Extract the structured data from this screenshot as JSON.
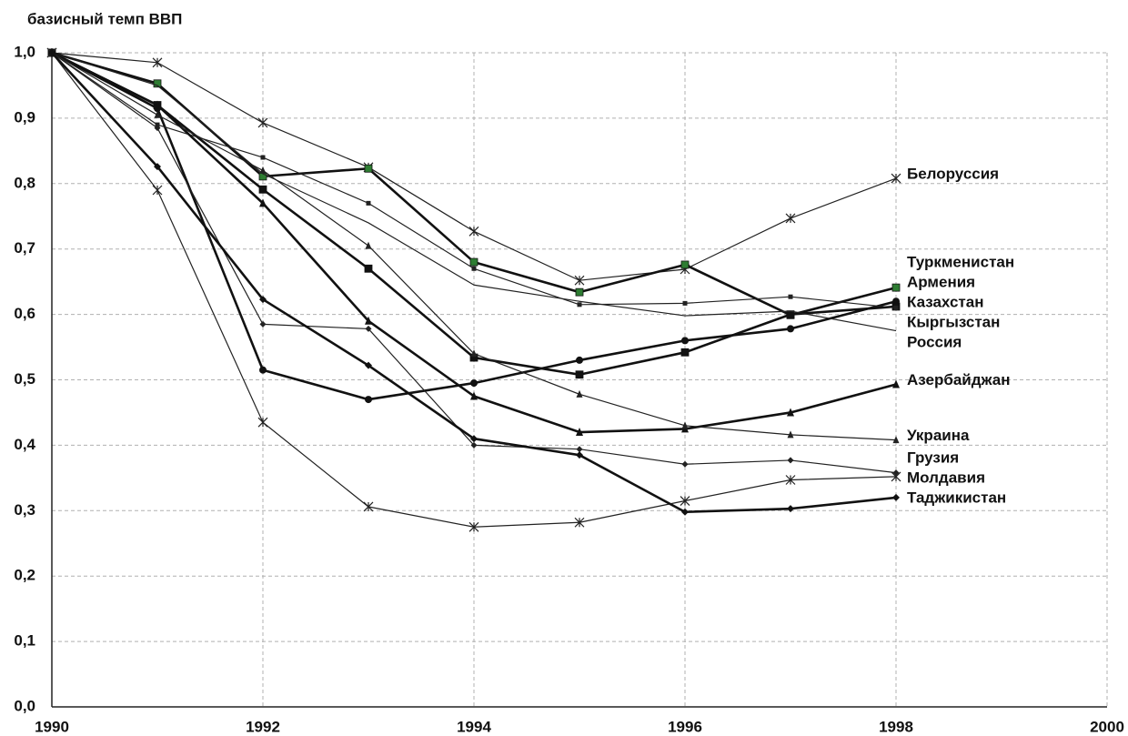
{
  "chart_data": {
    "type": "line",
    "title": "базисный темп ВВП",
    "x": [
      1990,
      1991,
      1992,
      1993,
      1994,
      1995,
      1996,
      1997,
      1998
    ],
    "xlim": [
      1990,
      2000
    ],
    "xticks": [
      1990,
      1992,
      1994,
      1996,
      1998,
      2000
    ],
    "ylim": [
      0,
      1
    ],
    "yticks": [
      {
        "value": 0,
        "label": "0,0"
      },
      {
        "value": 0.1,
        "label": "0,1"
      },
      {
        "value": 0.2,
        "label": "0,2"
      },
      {
        "value": 0.3,
        "label": "0,3"
      },
      {
        "value": 0.4,
        "label": "0,4"
      },
      {
        "value": 0.5,
        "label": "0,5"
      },
      {
        "value": 0.6,
        "label": "0,6"
      },
      {
        "value": 0.7,
        "label": "0,7"
      },
      {
        "value": 0.8,
        "label": "0,8"
      },
      {
        "value": 0.9,
        "label": "0,9"
      },
      {
        "value": 1,
        "label": "1,0"
      }
    ],
    "grid": true,
    "series": [
      {
        "name": "Белоруссия",
        "color": "#222222",
        "marker": "star",
        "thick": false,
        "values": [
          1.0,
          0.985,
          0.893,
          0.825,
          0.727,
          0.652,
          0.669,
          0.747,
          0.808
        ]
      },
      {
        "name": "Туркменистан",
        "color": "#111111",
        "marker_color": "#2e7d32",
        "marker": "square",
        "thick": true,
        "values": [
          1.0,
          0.953,
          0.811,
          0.823,
          0.68,
          0.634,
          0.676,
          0.599,
          0.641
        ]
      },
      {
        "name": "Армения",
        "color": "#111111",
        "marker": "circle",
        "thick": true,
        "values": [
          1.0,
          0.915,
          0.515,
          0.47,
          0.495,
          0.53,
          0.56,
          0.578,
          0.62
        ]
      },
      {
        "name": "Казахстан",
        "color": "#111111",
        "marker": "square",
        "thick": true,
        "values": [
          1.0,
          0.92,
          0.791,
          0.67,
          0.534,
          0.508,
          0.542,
          0.6,
          0.612
        ]
      },
      {
        "name": "Кыргызстан",
        "color": "#222222",
        "marker": "dash",
        "thick": false,
        "values": [
          1.0,
          0.89,
          0.84,
          0.77,
          0.67,
          0.615,
          0.617,
          0.627,
          0.61
        ]
      },
      {
        "name": "Россия",
        "color": "#222222",
        "marker": "none",
        "thick": false,
        "values": [
          1.0,
          0.95,
          0.815,
          0.74,
          0.645,
          0.62,
          0.598,
          0.605,
          0.575
        ]
      },
      {
        "name": "Азербайджан",
        "color": "#111111",
        "marker": "triangle",
        "thick": true,
        "values": [
          1.0,
          0.92,
          0.77,
          0.59,
          0.475,
          0.42,
          0.425,
          0.45,
          0.493
        ]
      },
      {
        "name": "Украина",
        "color": "#222222",
        "marker": "triangle",
        "thick": false,
        "values": [
          1.0,
          0.905,
          0.82,
          0.705,
          0.54,
          0.478,
          0.43,
          0.416,
          0.408
        ]
      },
      {
        "name": "Грузия",
        "color": "#222222",
        "marker": "diamond",
        "thick": false,
        "values": [
          1.0,
          0.885,
          0.585,
          0.578,
          0.4,
          0.394,
          0.371,
          0.377,
          0.358
        ]
      },
      {
        "name": "Молдавия",
        "color": "#222222",
        "marker": "star",
        "thick": false,
        "values": [
          1.0,
          0.79,
          0.435,
          0.306,
          0.275,
          0.282,
          0.315,
          0.347,
          0.352
        ]
      },
      {
        "name": "Таджикистан",
        "color": "#111111",
        "marker": "diamond",
        "thick": true,
        "values": [
          1.0,
          0.826,
          0.623,
          0.522,
          0.41,
          0.385,
          0.298,
          0.303,
          0.32
        ]
      }
    ]
  }
}
